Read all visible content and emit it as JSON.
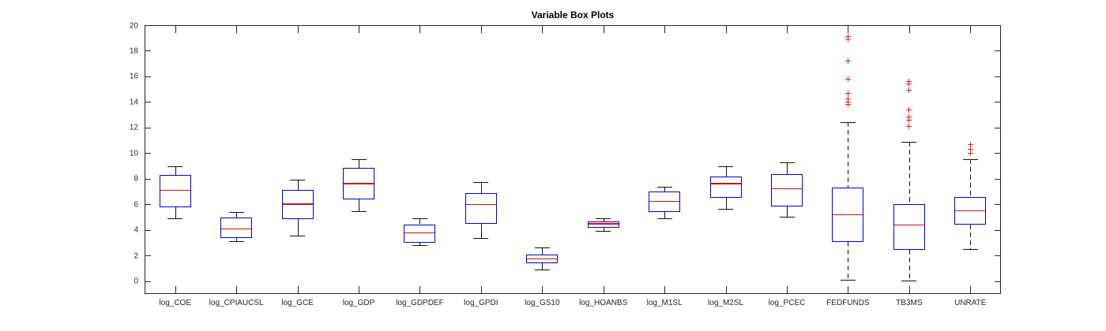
{
  "chart_data": {
    "type": "box",
    "title": "Variable Box Plots",
    "xlabel": "",
    "ylabel": "",
    "ylim": [
      -1,
      20
    ],
    "y_ticks": [
      0,
      2,
      4,
      6,
      8,
      10,
      12,
      14,
      16,
      18,
      20
    ],
    "grid": false,
    "legend": "none",
    "box_color": "#0000e0",
    "median_color": "#cc1111",
    "outlier_color": "#dd2222",
    "whisker_color": "#111111",
    "axis_color": "#262626",
    "categories": [
      "log_COE",
      "log_CPIAUCSL",
      "log_GCE",
      "log_GDP",
      "log_GDPDEF",
      "log_GPDI",
      "log_GS10",
      "log_HOANBS",
      "log_M1SL",
      "log_M2SL",
      "log_PCEC",
      "FEDFUNDS",
      "TB3MS",
      "UNRATE"
    ],
    "boxes": [
      {
        "label": "log_COE",
        "whisker_low": 4.9,
        "q1": 5.8,
        "median": 7.1,
        "q3": 8.3,
        "whisker_high": 9.0,
        "outliers": []
      },
      {
        "label": "log_CPIAUCSL",
        "whisker_low": 3.1,
        "q1": 3.4,
        "median": 4.1,
        "q3": 4.95,
        "whisker_high": 5.4,
        "outliers": []
      },
      {
        "label": "log_GCE",
        "whisker_low": 3.55,
        "q1": 4.85,
        "median": 6.05,
        "q3": 7.15,
        "whisker_high": 7.95,
        "outliers": []
      },
      {
        "label": "log_GDP",
        "whisker_low": 5.45,
        "q1": 6.4,
        "median": 7.65,
        "q3": 8.85,
        "whisker_high": 9.55,
        "outliers": []
      },
      {
        "label": "log_GDPDEF",
        "whisker_low": 2.8,
        "q1": 3.0,
        "median": 3.8,
        "q3": 4.45,
        "whisker_high": 4.9,
        "outliers": []
      },
      {
        "label": "log_GPDI",
        "whisker_low": 3.4,
        "q1": 4.5,
        "median": 6.0,
        "q3": 6.9,
        "whisker_high": 7.75,
        "outliers": []
      },
      {
        "label": "log_GS10",
        "whisker_low": 0.9,
        "q1": 1.4,
        "median": 1.75,
        "q3": 2.05,
        "whisker_high": 2.65,
        "outliers": []
      },
      {
        "label": "log_HOANBS",
        "whisker_low": 3.95,
        "q1": 4.15,
        "median": 4.5,
        "q3": 4.65,
        "whisker_high": 4.9,
        "outliers": []
      },
      {
        "label": "log_M1SL",
        "whisker_low": 4.9,
        "q1": 5.4,
        "median": 6.25,
        "q3": 7.0,
        "whisker_high": 7.35,
        "outliers": []
      },
      {
        "label": "log_M2SL",
        "whisker_low": 5.65,
        "q1": 6.5,
        "median": 7.65,
        "q3": 8.2,
        "whisker_high": 9.0,
        "outliers": []
      },
      {
        "label": "log_PCEC",
        "whisker_low": 5.05,
        "q1": 5.85,
        "median": 7.25,
        "q3": 8.35,
        "whisker_high": 9.3,
        "outliers": []
      },
      {
        "label": "FEDFUNDS",
        "whisker_low": 0.1,
        "q1": 3.05,
        "median": 5.2,
        "q3": 7.3,
        "whisker_high": 12.4,
        "outliers": [
          13.8,
          14.0,
          14.25,
          14.7,
          15.8,
          17.2,
          18.9,
          19.1
        ]
      },
      {
        "label": "TB3MS",
        "whisker_low": 0.05,
        "q1": 2.45,
        "median": 4.4,
        "q3": 6.0,
        "whisker_high": 10.9,
        "outliers": [
          12.1,
          12.55,
          12.8,
          13.4,
          14.9,
          15.4,
          15.6
        ]
      },
      {
        "label": "UNRATE",
        "whisker_low": 2.5,
        "q1": 4.4,
        "median": 5.5,
        "q3": 6.6,
        "whisker_high": 9.55,
        "outliers": [
          10.0,
          10.3,
          10.7
        ]
      }
    ]
  }
}
